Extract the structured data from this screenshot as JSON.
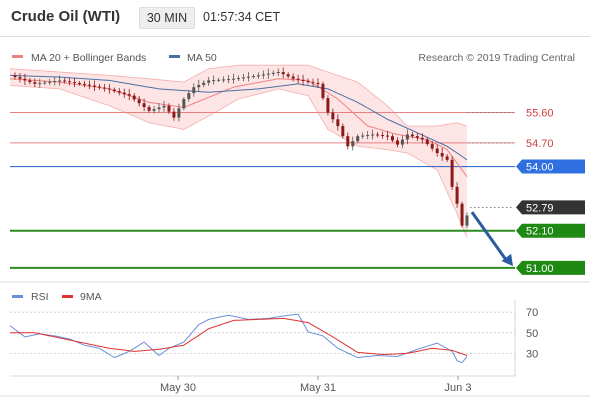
{
  "header": {
    "title": "Crude Oil (WTI)",
    "timeframe": "30 MIN",
    "time": "01:57:34 CET"
  },
  "legend": {
    "bollinger_label": "MA 20 + Bollinger Bands",
    "ma50_label": "MA 50",
    "copyright": "Research © 2019 Trading Central",
    "rsi_label": "RSI",
    "ma9_label": "9MA"
  },
  "colors": {
    "bull_candle": "#555555",
    "bear_candle": "#8b1a1a",
    "bollinger": "#f08080",
    "bollinger_fill": "#fde2e2",
    "ma50": "#4a6fa5",
    "resistance": "#e88080",
    "pivot": "#3a6fc8",
    "support": "#2e8b22",
    "rsi": "#6a8fd8",
    "rsi_ma": "#e03030",
    "arrow": "#2a5aa0"
  },
  "chart_data": [
    {
      "type": "candlestick",
      "title": "Crude Oil (WTI)",
      "timeframe": "30 MIN",
      "x_ticks": [
        "May 30",
        "May 31",
        "Jun 3"
      ],
      "ylim": [
        50.7,
        56.8
      ],
      "current_price": 52.79,
      "levels": [
        {
          "value": 55.6,
          "label": "55.60",
          "kind": "resistance"
        },
        {
          "value": 54.7,
          "label": "54.70",
          "kind": "resistance"
        },
        {
          "value": 54.0,
          "label": "54.00",
          "kind": "pivot"
        },
        {
          "value": 52.1,
          "label": "52.10",
          "kind": "support"
        },
        {
          "value": 51.0,
          "label": "51.00",
          "kind": "support"
        }
      ],
      "close_price_path": [
        [
          0,
          56.7
        ],
        [
          5,
          56.45
        ],
        [
          10,
          56.55
        ],
        [
          16,
          56.4
        ],
        [
          20,
          56.28
        ],
        [
          24,
          56.1
        ],
        [
          28,
          55.65
        ],
        [
          31,
          55.8
        ],
        [
          33,
          55.45
        ],
        [
          35,
          56.0
        ],
        [
          37,
          56.35
        ],
        [
          40,
          56.55
        ],
        [
          45,
          56.6
        ],
        [
          50,
          56.7
        ],
        [
          54,
          56.8
        ],
        [
          57,
          56.6
        ],
        [
          60,
          56.5
        ],
        [
          62,
          56.45
        ],
        [
          64,
          55.6
        ],
        [
          66,
          55.2
        ],
        [
          68,
          54.6
        ],
        [
          70,
          54.9
        ],
        [
          73,
          54.95
        ],
        [
          76,
          54.9
        ],
        [
          78,
          54.65
        ],
        [
          80,
          54.95
        ],
        [
          83,
          54.8
        ],
        [
          86,
          54.4
        ],
        [
          88,
          54.2
        ],
        [
          89,
          53.4
        ],
        [
          90,
          52.9
        ],
        [
          91,
          52.25
        ],
        [
          92,
          52.55
        ]
      ],
      "ma20_path": [
        [
          0,
          56.6
        ],
        [
          10,
          56.5
        ],
        [
          20,
          56.3
        ],
        [
          28,
          55.9
        ],
        [
          35,
          55.75
        ],
        [
          45,
          56.35
        ],
        [
          54,
          56.6
        ],
        [
          60,
          56.55
        ],
        [
          66,
          56.0
        ],
        [
          72,
          55.2
        ],
        [
          78,
          54.95
        ],
        [
          84,
          54.8
        ],
        [
          88,
          54.5
        ],
        [
          92,
          53.7
        ]
      ],
      "bollinger_upper_path": [
        [
          0,
          56.9
        ],
        [
          10,
          56.8
        ],
        [
          20,
          56.7
        ],
        [
          28,
          56.6
        ],
        [
          35,
          56.5
        ],
        [
          40,
          56.9
        ],
        [
          46,
          57.0
        ],
        [
          54,
          57.0
        ],
        [
          60,
          57.0
        ],
        [
          64,
          56.8
        ],
        [
          70,
          56.5
        ],
        [
          76,
          55.8
        ],
        [
          80,
          55.2
        ],
        [
          86,
          55.2
        ],
        [
          90,
          55.3
        ],
        [
          92,
          55.2
        ]
      ],
      "bollinger_lower_path": [
        [
          0,
          56.4
        ],
        [
          10,
          56.3
        ],
        [
          20,
          55.8
        ],
        [
          28,
          55.3
        ],
        [
          35,
          55.1
        ],
        [
          40,
          55.5
        ],
        [
          46,
          56.0
        ],
        [
          54,
          56.3
        ],
        [
          60,
          56.1
        ],
        [
          64,
          55.1
        ],
        [
          70,
          54.6
        ],
        [
          76,
          54.5
        ],
        [
          80,
          54.4
        ],
        [
          86,
          53.9
        ],
        [
          90,
          52.6
        ],
        [
          92,
          51.9
        ]
      ],
      "ma50_path": [
        [
          0,
          56.7
        ],
        [
          10,
          56.65
        ],
        [
          20,
          56.55
        ],
        [
          30,
          56.3
        ],
        [
          40,
          56.2
        ],
        [
          50,
          56.3
        ],
        [
          58,
          56.45
        ],
        [
          64,
          56.3
        ],
        [
          70,
          55.9
        ],
        [
          76,
          55.4
        ],
        [
          82,
          55.0
        ],
        [
          88,
          54.6
        ],
        [
          92,
          54.2
        ]
      ],
      "projection_arrow": {
        "from": [
          93,
          52.65
        ],
        "to": [
          100,
          51.05
        ]
      }
    },
    {
      "type": "line",
      "title": "RSI",
      "ylim": [
        12,
        76
      ],
      "y_ticks": [
        70,
        50,
        30
      ],
      "series": [
        {
          "name": "RSI",
          "path": [
            [
              0,
              57
            ],
            [
              3,
              46
            ],
            [
              6,
              49
            ],
            [
              9,
              47
            ],
            [
              12,
              44
            ],
            [
              15,
              38
            ],
            [
              18,
              35
            ],
            [
              21,
              26
            ],
            [
              24,
              32
            ],
            [
              27,
              41
            ],
            [
              30,
              28
            ],
            [
              32,
              35
            ],
            [
              35,
              41
            ],
            [
              38,
              58
            ],
            [
              40,
              63
            ],
            [
              44,
              67
            ],
            [
              48,
              63
            ],
            [
              52,
              64
            ],
            [
              56,
              67
            ],
            [
              58,
              68
            ],
            [
              60,
              51
            ],
            [
              63,
              47
            ],
            [
              66,
              35
            ],
            [
              70,
              26
            ],
            [
              74,
              28
            ],
            [
              78,
              27
            ],
            [
              82,
              34
            ],
            [
              86,
              40
            ],
            [
              89,
              32
            ],
            [
              90,
              23
            ],
            [
              91,
              21
            ],
            [
              92,
              27
            ]
          ]
        },
        {
          "name": "9MA",
          "path": [
            [
              0,
              50
            ],
            [
              5,
              50
            ],
            [
              10,
              45
            ],
            [
              15,
              40
            ],
            [
              20,
              35
            ],
            [
              25,
              32
            ],
            [
              30,
              34
            ],
            [
              35,
              38
            ],
            [
              40,
              54
            ],
            [
              45,
              62
            ],
            [
              50,
              63
            ],
            [
              55,
              64
            ],
            [
              60,
              60
            ],
            [
              65,
              46
            ],
            [
              70,
              31
            ],
            [
              75,
              29
            ],
            [
              80,
              30
            ],
            [
              85,
              35
            ],
            [
              89,
              33
            ],
            [
              92,
              28
            ]
          ]
        }
      ]
    }
  ]
}
